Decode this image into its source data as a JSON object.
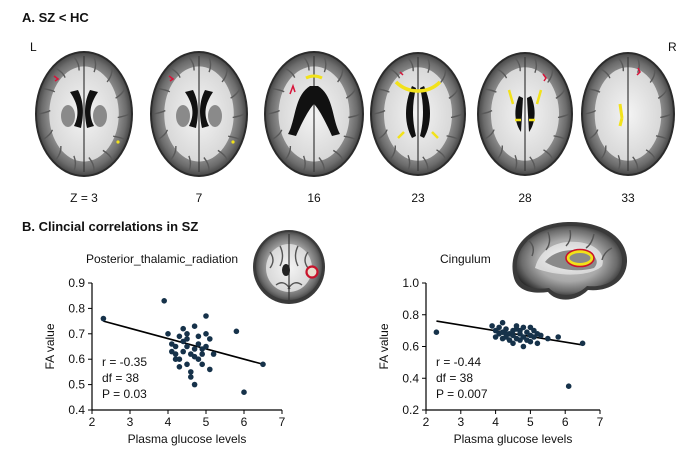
{
  "panel_a": {
    "title": "A. SZ < HC",
    "left_label": "L",
    "right_label": "R",
    "slices": [
      {
        "label": "Z = 3"
      },
      {
        "label": "7"
      },
      {
        "label": "16"
      },
      {
        "label": "23"
      },
      {
        "label": "28"
      },
      {
        "label": "33"
      }
    ]
  },
  "panel_b": {
    "title": "B. Clincial correlations in SZ"
  },
  "colors": {
    "point": "#16324a",
    "line": "#000000",
    "highlight_yellow": "#f2e21a",
    "highlight_red": "#d8143a",
    "roi_ring": "#c8142c"
  },
  "chart_data": [
    {
      "type": "scatter",
      "title": "Posterior_thalamic_radiation",
      "xlabel": "Plasma glucose levels",
      "ylabel": "FA value",
      "xlim": [
        2,
        7
      ],
      "ylim": [
        0.4,
        0.9
      ],
      "xticks": [
        "2",
        "3",
        "4",
        "5",
        "6",
        "7"
      ],
      "yticks": [
        "0.4",
        "0.5",
        "0.6",
        "0.7",
        "0.8",
        "0.9"
      ],
      "fit_line": {
        "x": [
          2.3,
          6.5
        ],
        "y": [
          0.75,
          0.58
        ]
      },
      "stats": [
        "r = -0.35",
        "df = 38",
        "P = 0.03"
      ],
      "points": [
        [
          2.3,
          0.76
        ],
        [
          3.9,
          0.83
        ],
        [
          4.0,
          0.7
        ],
        [
          4.1,
          0.66
        ],
        [
          4.1,
          0.63
        ],
        [
          4.2,
          0.65
        ],
        [
          4.2,
          0.62
        ],
        [
          4.3,
          0.69
        ],
        [
          4.3,
          0.6
        ],
        [
          4.4,
          0.67
        ],
        [
          4.4,
          0.63
        ],
        [
          4.5,
          0.7
        ],
        [
          4.5,
          0.65
        ],
        [
          4.5,
          0.58
        ],
        [
          4.6,
          0.62
        ],
        [
          4.6,
          0.55
        ],
        [
          4.7,
          0.64
        ],
        [
          4.7,
          0.5
        ],
        [
          4.7,
          0.73
        ],
        [
          4.8,
          0.6
        ],
        [
          4.8,
          0.69
        ],
        [
          4.9,
          0.62
        ],
        [
          4.9,
          0.58
        ],
        [
          5.0,
          0.65
        ],
        [
          5.0,
          0.7
        ],
        [
          5.0,
          0.77
        ],
        [
          5.1,
          0.68
        ],
        [
          5.1,
          0.56
        ],
        [
          5.2,
          0.62
        ],
        [
          4.4,
          0.72
        ],
        [
          4.6,
          0.53
        ],
        [
          4.8,
          0.66
        ],
        [
          5.8,
          0.71
        ],
        [
          6.0,
          0.47
        ],
        [
          6.5,
          0.58
        ],
        [
          4.2,
          0.6
        ],
        [
          4.5,
          0.68
        ],
        [
          4.9,
          0.64
        ],
        [
          4.3,
          0.57
        ],
        [
          4.7,
          0.61
        ]
      ]
    },
    {
      "type": "scatter",
      "title": "Cingulum",
      "xlabel": "Plasma glucose levels",
      "ylabel": "FA value",
      "xlim": [
        2,
        7
      ],
      "ylim": [
        0.2,
        1.0
      ],
      "xticks": [
        "2",
        "3",
        "4",
        "5",
        "6",
        "7"
      ],
      "yticks": [
        "0.2",
        "0.4",
        "0.6",
        "0.8",
        "1.0"
      ],
      "fit_line": {
        "x": [
          2.3,
          6.5
        ],
        "y": [
          0.76,
          0.61
        ]
      },
      "stats": [
        "r = -0.44",
        "df = 38",
        "P = 0.007"
      ],
      "points": [
        [
          2.3,
          0.69
        ],
        [
          3.9,
          0.73
        ],
        [
          4.0,
          0.7
        ],
        [
          4.1,
          0.68
        ],
        [
          4.1,
          0.72
        ],
        [
          4.2,
          0.69
        ],
        [
          4.2,
          0.75
        ],
        [
          4.3,
          0.66
        ],
        [
          4.3,
          0.71
        ],
        [
          4.4,
          0.68
        ],
        [
          4.4,
          0.64
        ],
        [
          4.5,
          0.7
        ],
        [
          4.5,
          0.67
        ],
        [
          4.6,
          0.73
        ],
        [
          4.6,
          0.65
        ],
        [
          4.7,
          0.7
        ],
        [
          4.7,
          0.68
        ],
        [
          4.8,
          0.66
        ],
        [
          4.8,
          0.72
        ],
        [
          4.9,
          0.64
        ],
        [
          4.9,
          0.69
        ],
        [
          5.0,
          0.67
        ],
        [
          5.0,
          0.63
        ],
        [
          5.1,
          0.7
        ],
        [
          5.1,
          0.66
        ],
        [
          5.2,
          0.62
        ],
        [
          5.3,
          0.67
        ],
        [
          5.5,
          0.65
        ],
        [
          5.8,
          0.66
        ],
        [
          6.1,
          0.35
        ],
        [
          6.5,
          0.62
        ],
        [
          4.5,
          0.62
        ],
        [
          4.8,
          0.6
        ],
        [
          4.2,
          0.65
        ],
        [
          4.0,
          0.66
        ],
        [
          4.6,
          0.71
        ],
        [
          5.0,
          0.72
        ],
        [
          4.3,
          0.68
        ],
        [
          5.2,
          0.68
        ],
        [
          4.7,
          0.64
        ]
      ]
    }
  ]
}
